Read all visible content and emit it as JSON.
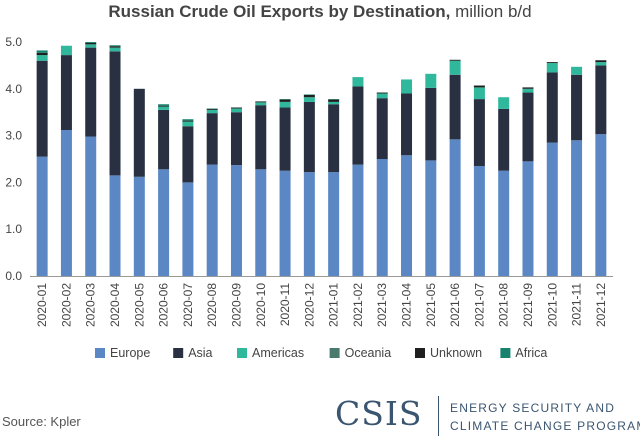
{
  "title": "Russian Crude Oil Exports by Destination,",
  "units": "million b/d",
  "source": "Source: Kpler",
  "logo": {
    "name": "CSIS",
    "line1": "ENERGY SECURITY AND",
    "line2": "CLIMATE CHANGE PROGRAM"
  },
  "chart_data": {
    "type": "bar",
    "stacked": true,
    "ylim": [
      0,
      5.0
    ],
    "yticks": [
      "0.0",
      "1.0",
      "2.0",
      "3.0",
      "4.0",
      "5.0"
    ],
    "ytick_values": [
      0,
      1,
      2,
      3,
      4,
      5
    ],
    "grid": false,
    "legend_position": "bottom",
    "categories": [
      "2020-01",
      "2020-02",
      "2020-03",
      "2020-04",
      "2020-05",
      "2020-06",
      "2020-07",
      "2020-08",
      "2020-09",
      "2020-10",
      "2020-11",
      "2020-12",
      "2021-01",
      "2021-02",
      "2021-03",
      "2021-04",
      "2021-05",
      "2021-06",
      "2021-07",
      "2021-08",
      "2021-09",
      "2021-10",
      "2021-11",
      "2021-12"
    ],
    "series": [
      {
        "name": "Europe",
        "color": "#5b88c4",
        "values": [
          2.55,
          3.12,
          2.98,
          2.15,
          2.12,
          2.28,
          2.0,
          2.38,
          2.37,
          2.28,
          2.25,
          2.22,
          2.22,
          2.38,
          2.5,
          2.58,
          2.47,
          2.92,
          2.35,
          2.25,
          2.45,
          2.85,
          2.9,
          3.03
        ]
      },
      {
        "name": "Asia",
        "color": "#283041",
        "values": [
          2.05,
          1.6,
          1.9,
          2.65,
          1.88,
          1.27,
          1.2,
          1.1,
          1.13,
          1.37,
          1.35,
          1.5,
          1.45,
          1.67,
          1.3,
          1.32,
          1.55,
          1.38,
          1.43,
          1.32,
          1.47,
          1.5,
          1.4,
          1.47
        ]
      },
      {
        "name": "Americas",
        "color": "#2fb89c",
        "values": [
          0.12,
          0.2,
          0.07,
          0.08,
          0.0,
          0.07,
          0.1,
          0.07,
          0.08,
          0.06,
          0.12,
          0.1,
          0.05,
          0.2,
          0.1,
          0.3,
          0.3,
          0.3,
          0.25,
          0.25,
          0.08,
          0.2,
          0.17,
          0.07
        ]
      },
      {
        "name": "Oceania",
        "color": "#4a7a6e",
        "values": [
          0,
          0,
          0,
          0,
          0,
          0,
          0,
          0,
          0,
          0,
          0,
          0,
          0,
          0,
          0,
          0,
          0,
          0,
          0,
          0,
          0,
          0,
          0,
          0
        ]
      },
      {
        "name": "Unknown",
        "color": "#1f1f1f",
        "values": [
          0.05,
          0.0,
          0.03,
          0.03,
          0.0,
          0.02,
          0.02,
          0.02,
          0.02,
          0.02,
          0.05,
          0.05,
          0.05,
          0.0,
          0.02,
          0.0,
          0.0,
          0.02,
          0.04,
          0.0,
          0.03,
          0.02,
          0.0,
          0.04
        ]
      },
      {
        "name": "Africa",
        "color": "#17826e",
        "values": [
          0.05,
          0.0,
          0.02,
          0.02,
          0.0,
          0.03,
          0.03,
          0.01,
          0.0,
          0.0,
          0.01,
          0.01,
          0.01,
          0.0,
          0.0,
          0.0,
          0.0,
          0.0,
          0.0,
          0.0,
          0.0,
          0.0,
          0.0,
          0.0
        ]
      }
    ]
  }
}
